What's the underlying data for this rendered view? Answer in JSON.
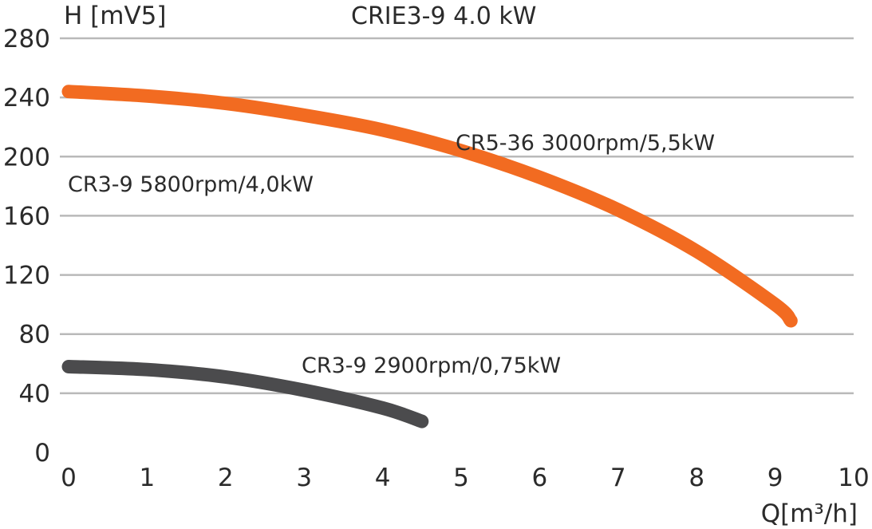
{
  "chart_data": {
    "type": "line",
    "title": "CRIE3-9 4.0 kW",
    "ylabel": "H [mV5]",
    "xlabel": "Q[m³/h]",
    "xlim": [
      0,
      10
    ],
    "ylim": [
      0,
      280
    ],
    "x_ticks": [
      "0",
      "1",
      "2",
      "3",
      "4",
      "5",
      "6",
      "7",
      "8",
      "9",
      "10"
    ],
    "y_ticks": [
      "0",
      "40",
      "80",
      "120",
      "160",
      "200",
      "240",
      "280"
    ],
    "grid": true,
    "series": [
      {
        "name": "CR5-36 3000rpm/5,5kW",
        "color": "#f26b21",
        "x": [
          0,
          1,
          2,
          3,
          4,
          5,
          6,
          7,
          8,
          9,
          9.2
        ],
        "y": [
          244,
          241,
          236,
          228,
          218,
          204,
          186,
          164,
          136,
          100,
          89
        ]
      },
      {
        "name": "CR3-9 2900rpm/0,75kW",
        "color": "#4b4b4d",
        "x": [
          0,
          1,
          2,
          3,
          4,
          4.5
        ],
        "y": [
          58,
          56,
          51,
          42,
          30,
          21
        ]
      }
    ],
    "annotations": [
      {
        "text": "CR3-9 5800rpm/4,0kW"
      }
    ]
  }
}
